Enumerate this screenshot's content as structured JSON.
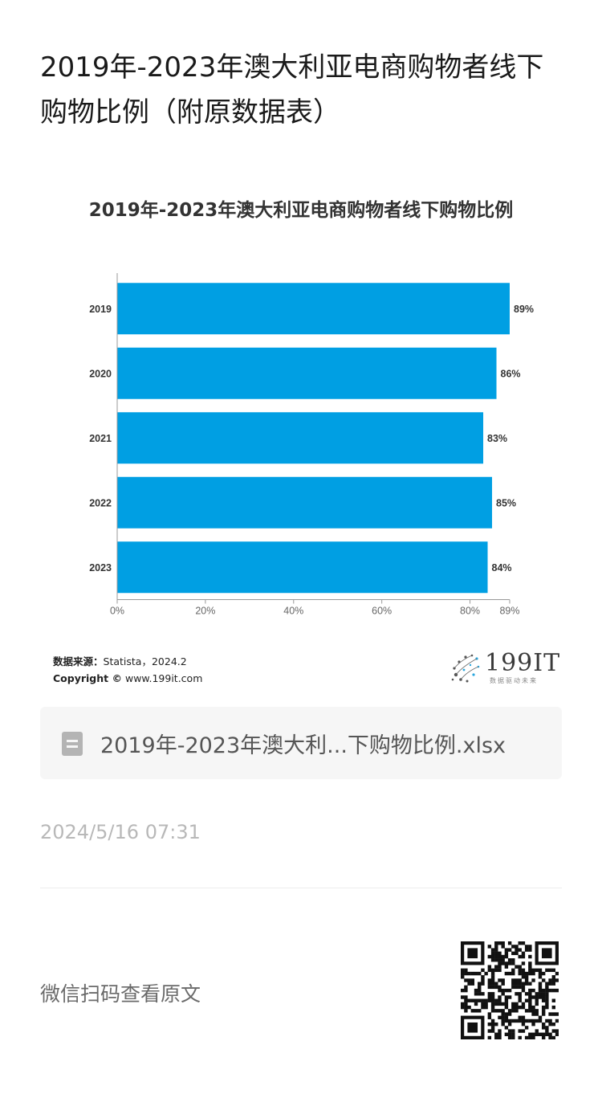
{
  "article": {
    "title": "2019年-2023年澳大利亚电商购物者线下购物比例（附原数据表）"
  },
  "chart_data": {
    "type": "bar",
    "orientation": "horizontal",
    "title": "2019年-2023年澳大利亚电商购物者线下购物比例",
    "categories": [
      "2019",
      "2020",
      "2021",
      "2022",
      "2023"
    ],
    "values": [
      89,
      86,
      83,
      85,
      84
    ],
    "value_labels": [
      "89%",
      "86%",
      "83%",
      "85%",
      "84%"
    ],
    "unit": "%",
    "xlim": [
      0,
      89
    ],
    "x_ticks": [
      0,
      20,
      40,
      60,
      80,
      89
    ],
    "x_tick_labels": [
      "0%",
      "20%",
      "40%",
      "60%",
      "80%",
      "89%"
    ],
    "bar_color": "#009fe3",
    "grid": false,
    "legend": "none"
  },
  "source": {
    "label": "数据来源：",
    "text": "Statista，2024.2",
    "copyright_label": "Copyright ©",
    "copyright_text": "www.199it.com"
  },
  "logo": {
    "text": "199IT",
    "tagline": "数据驱动未来",
    "color": "#3a3a3a"
  },
  "attachment": {
    "file_name": "2019年-2023年澳大利...下购物比例.xlsx",
    "icon": "spreadsheet-file-icon"
  },
  "meta": {
    "timestamp": "2024/5/16 07:31",
    "scan_hint": "微信扫码查看原文"
  }
}
